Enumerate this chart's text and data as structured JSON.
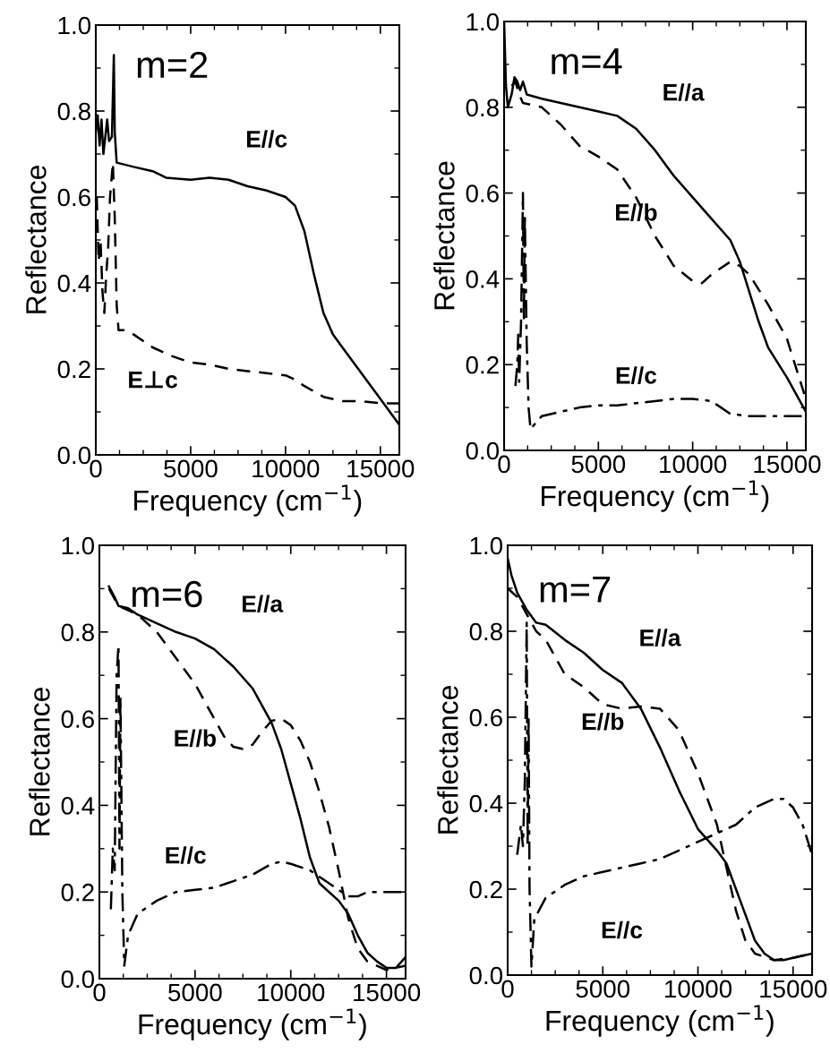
{
  "chart_data": [
    {
      "type": "line",
      "title": "m=2",
      "xlabel": "Frequency (cm$^{−1}$)",
      "ylabel": "Reflectance",
      "xlim": [
        0,
        16000
      ],
      "ylim": [
        0,
        1
      ],
      "xticks": [
        0,
        5000,
        10000,
        15000
      ],
      "yticks": [
        {
          "value": 0,
          "label": "0.0"
        },
        {
          "value": 0.2,
          "label": "0.2"
        },
        {
          "value": 0.4,
          "label": "0.4"
        },
        {
          "value": 0.6,
          "label": "0.6"
        },
        {
          "value": 0.8,
          "label": "0.8"
        },
        {
          "value": 1,
          "label": "1.0"
        }
      ],
      "grid": false,
      "legend": false,
      "series": [
        {
          "name": "E//c",
          "color": "#000000",
          "line_style": "solid",
          "x": [
            0,
            100,
            200,
            300,
            400,
            500,
            600,
            700,
            850,
            950,
            1000,
            1100,
            2000,
            3000,
            3700,
            5000,
            6000,
            7000,
            8000,
            9000,
            10000,
            10500,
            11000,
            11500,
            12000,
            12500,
            13000,
            14000,
            15000,
            16000
          ],
          "values": [
            0.75,
            0.79,
            0.72,
            0.78,
            0.7,
            0.74,
            0.78,
            0.73,
            0.74,
            0.93,
            0.75,
            0.68,
            0.67,
            0.66,
            0.645,
            0.64,
            0.645,
            0.64,
            0.625,
            0.615,
            0.6,
            0.58,
            0.52,
            0.42,
            0.33,
            0.28,
            0.25,
            0.19,
            0.13,
            0.07
          ]
        },
        {
          "name": "E⊥c",
          "color": "#000000",
          "line_style": "dashed",
          "x": [
            50,
            150,
            250,
            350,
            450,
            550,
            650,
            750,
            900,
            1000,
            1100,
            1200,
            1500,
            2000,
            3000,
            4000,
            5000,
            6000,
            7000,
            8000,
            9000,
            10000,
            10500,
            11000,
            12000,
            13000,
            14000,
            15000,
            16000
          ],
          "values": [
            0.6,
            0.45,
            0.5,
            0.38,
            0.33,
            0.42,
            0.48,
            0.6,
            0.68,
            0.55,
            0.35,
            0.29,
            0.29,
            0.28,
            0.25,
            0.23,
            0.215,
            0.21,
            0.2,
            0.195,
            0.19,
            0.185,
            0.175,
            0.16,
            0.135,
            0.125,
            0.125,
            0.12,
            0.12
          ]
        }
      ]
    },
    {
      "type": "line",
      "title": "m=4",
      "xlabel": "Frequency (cm$^{−1}$)",
      "ylabel": "Reflectance",
      "xlim": [
        0,
        16000
      ],
      "ylim": [
        0,
        1
      ],
      "xticks": [
        0,
        5000,
        10000,
        15000
      ],
      "yticks": [
        {
          "value": 0,
          "label": "0.0"
        },
        {
          "value": 0.2,
          "label": "0.2"
        },
        {
          "value": 0.4,
          "label": "0.4"
        },
        {
          "value": 0.6,
          "label": "0.6"
        },
        {
          "value": 0.8,
          "label": "0.8"
        },
        {
          "value": 1,
          "label": "1.0"
        }
      ],
      "grid": false,
      "legend": false,
      "series": [
        {
          "name": "E//a",
          "color": "#000000",
          "line_style": "solid",
          "x": [
            0,
            100,
            200,
            400,
            550,
            700,
            850,
            1000,
            1200,
            2000,
            3000,
            4000,
            5000,
            6000,
            7000,
            8000,
            9000,
            10000,
            11000,
            12000,
            12500,
            13000,
            13500,
            14000,
            15000,
            16000
          ],
          "values": [
            1.0,
            0.85,
            0.8,
            0.83,
            0.87,
            0.86,
            0.84,
            0.86,
            0.83,
            0.82,
            0.81,
            0.8,
            0.79,
            0.78,
            0.75,
            0.7,
            0.64,
            0.59,
            0.54,
            0.49,
            0.44,
            0.37,
            0.3,
            0.24,
            0.17,
            0.09
          ]
        },
        {
          "name": "E//b",
          "color": "#000000",
          "line_style": "dashed",
          "x": [
            400,
            600,
            800,
            1000,
            2000,
            3000,
            4000,
            5000,
            6000,
            7000,
            8000,
            9000,
            10000,
            10500,
            11000,
            12000,
            12500,
            13000,
            14000,
            15000,
            16000
          ],
          "values": [
            0.85,
            0.86,
            0.83,
            0.81,
            0.8,
            0.76,
            0.71,
            0.685,
            0.655,
            0.59,
            0.5,
            0.43,
            0.395,
            0.39,
            0.41,
            0.44,
            0.43,
            0.41,
            0.34,
            0.26,
            0.12
          ]
        },
        {
          "name": "E//c",
          "color": "#000000",
          "line_style": "dashdot",
          "x": [
            600,
            700,
            750,
            800,
            900,
            1000,
            1050,
            1100,
            1200,
            1300,
            1400,
            1600,
            2000,
            3000,
            4000,
            5000,
            6000,
            7000,
            8000,
            9000,
            10000,
            11000,
            11500,
            12000,
            13000,
            14000,
            15000,
            16000
          ],
          "values": [
            0.15,
            0.2,
            0.27,
            0.16,
            0.3,
            0.6,
            0.3,
            0.55,
            0.25,
            0.1,
            0.05,
            0.06,
            0.08,
            0.09,
            0.1,
            0.105,
            0.105,
            0.11,
            0.115,
            0.12,
            0.12,
            0.115,
            0.1,
            0.085,
            0.08,
            0.08,
            0.08,
            0.08
          ]
        }
      ]
    },
    {
      "type": "line",
      "title": "m=6",
      "xlabel": "Frequency (cm$^{−1}$)",
      "ylabel": "Reflectance",
      "xlim": [
        0,
        16000
      ],
      "ylim": [
        0,
        1
      ],
      "xticks": [
        0,
        5000,
        10000,
        15000
      ],
      "yticks": [
        {
          "value": 0,
          "label": "0.0"
        },
        {
          "value": 0.2,
          "label": "0.2"
        },
        {
          "value": 0.4,
          "label": "0.4"
        },
        {
          "value": 0.6,
          "label": "0.6"
        },
        {
          "value": 0.8,
          "label": "0.8"
        },
        {
          "value": 1,
          "label": "1.0"
        }
      ],
      "grid": false,
      "legend": false,
      "series": [
        {
          "name": "E//a",
          "color": "#000000",
          "line_style": "solid",
          "x": [
            500,
            800,
            1000,
            1500,
            2000,
            3000,
            4000,
            5000,
            6000,
            7000,
            8000,
            9000,
            9500,
            10000,
            10500,
            11000,
            11500,
            12000,
            12500,
            13000,
            13500,
            14000,
            14500,
            15000,
            15500,
            16000
          ],
          "values": [
            0.905,
            0.88,
            0.86,
            0.855,
            0.84,
            0.82,
            0.8,
            0.785,
            0.76,
            0.72,
            0.67,
            0.59,
            0.53,
            0.45,
            0.37,
            0.28,
            0.22,
            0.2,
            0.18,
            0.15,
            0.1,
            0.06,
            0.04,
            0.025,
            0.025,
            0.05
          ]
        },
        {
          "name": "E//b",
          "color": "#000000",
          "line_style": "dashed",
          "x": [
            500,
            1000,
            2000,
            3000,
            4000,
            5000,
            6000,
            6500,
            7000,
            7500,
            8000,
            8500,
            9000,
            9500,
            10000,
            10500,
            11000,
            11500,
            12000,
            12500,
            13000,
            13500,
            14000,
            15000,
            16000
          ],
          "values": [
            0.9,
            0.86,
            0.84,
            0.8,
            0.74,
            0.68,
            0.6,
            0.56,
            0.535,
            0.53,
            0.54,
            0.57,
            0.595,
            0.6,
            0.585,
            0.55,
            0.5,
            0.43,
            0.35,
            0.25,
            0.14,
            0.07,
            0.04,
            0.02,
            0.03
          ]
        },
        {
          "name": "E//c",
          "color": "#000000",
          "line_style": "dashdot",
          "x": [
            600,
            700,
            800,
            900,
            1000,
            1050,
            1100,
            1200,
            1300,
            1500,
            2000,
            3000,
            4000,
            5000,
            6000,
            7000,
            8000,
            9000,
            9500,
            10000,
            11000,
            12000,
            13000,
            13500,
            14000,
            15000,
            16000
          ],
          "values": [
            0.16,
            0.3,
            0.25,
            0.7,
            0.77,
            0.3,
            0.65,
            0.2,
            0.03,
            0.1,
            0.15,
            0.18,
            0.2,
            0.205,
            0.21,
            0.225,
            0.24,
            0.265,
            0.27,
            0.265,
            0.25,
            0.22,
            0.19,
            0.19,
            0.2,
            0.2,
            0.2
          ]
        }
      ]
    },
    {
      "type": "line",
      "title": "m=7",
      "xlabel": "Frequency (cm$^{−1}$)",
      "ylabel": "Reflectance",
      "xlim": [
        0,
        16000
      ],
      "ylim": [
        0,
        1
      ],
      "xticks": [
        0,
        5000,
        10000,
        15000
      ],
      "yticks": [
        {
          "value": 0,
          "label": "0.0"
        },
        {
          "value": 0.2,
          "label": "0.2"
        },
        {
          "value": 0.4,
          "label": "0.4"
        },
        {
          "value": 0.6,
          "label": "0.6"
        },
        {
          "value": 0.8,
          "label": "0.8"
        },
        {
          "value": 1,
          "label": "1.0"
        }
      ],
      "grid": false,
      "legend": false,
      "series": [
        {
          "name": "E//a",
          "color": "#000000",
          "line_style": "solid",
          "x": [
            0,
            200,
            500,
            1000,
            1500,
            2000,
            3000,
            4000,
            5000,
            6000,
            7000,
            8000,
            9000,
            10000,
            11000,
            11500,
            12000,
            12500,
            13000,
            13500,
            14000,
            14500,
            15000,
            16000
          ],
          "values": [
            0.97,
            0.93,
            0.89,
            0.85,
            0.82,
            0.815,
            0.78,
            0.75,
            0.71,
            0.68,
            0.62,
            0.53,
            0.43,
            0.34,
            0.29,
            0.26,
            0.2,
            0.14,
            0.08,
            0.05,
            0.035,
            0.035,
            0.04,
            0.05
          ]
        },
        {
          "name": "E//b",
          "color": "#000000",
          "line_style": "dashed",
          "x": [
            0,
            500,
            1000,
            1500,
            2000,
            3000,
            4000,
            5000,
            6000,
            7000,
            8000,
            9000,
            10000,
            11000,
            11500,
            12000,
            12500,
            13000,
            14000,
            15000,
            16000
          ],
          "values": [
            0.9,
            0.88,
            0.84,
            0.8,
            0.78,
            0.7,
            0.67,
            0.63,
            0.62,
            0.625,
            0.62,
            0.57,
            0.47,
            0.35,
            0.25,
            0.15,
            0.08,
            0.05,
            0.035,
            0.04,
            0.05
          ]
        },
        {
          "name": "E//c",
          "color": "#000000",
          "line_style": "dashdot",
          "x": [
            500,
            700,
            800,
            900,
            1000,
            1050,
            1100,
            1150,
            1250,
            1400,
            2000,
            3000,
            4000,
            5000,
            6000,
            7000,
            8000,
            9000,
            10000,
            11000,
            12000,
            13000,
            14000,
            14500,
            15000,
            15500,
            16000
          ],
          "values": [
            0.28,
            0.35,
            0.3,
            0.45,
            0.82,
            0.3,
            0.6,
            0.2,
            0.02,
            0.13,
            0.18,
            0.21,
            0.23,
            0.24,
            0.25,
            0.26,
            0.27,
            0.29,
            0.31,
            0.33,
            0.35,
            0.39,
            0.41,
            0.41,
            0.39,
            0.35,
            0.28
          ]
        }
      ]
    }
  ]
}
